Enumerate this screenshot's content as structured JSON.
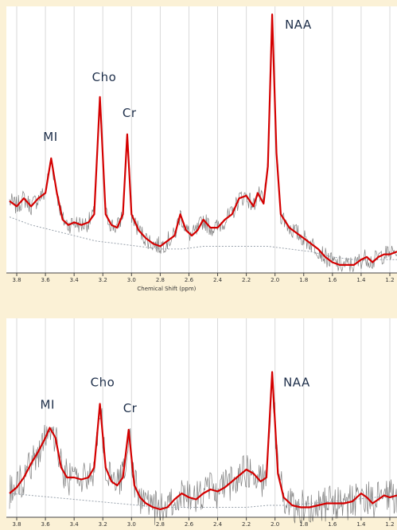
{
  "chart_data": [
    {
      "type": "line",
      "title": "",
      "xlabel": "Chemical Shift (ppm)",
      "ylabel": "",
      "x_reversed": true,
      "xlim": [
        3.85,
        1.15
      ],
      "ylim": [
        0,
        1
      ],
      "grid": true,
      "xticks": [
        3.8,
        3.6,
        3.4,
        3.2,
        3.0,
        2.8,
        2.6,
        2.4,
        2.2,
        2.0,
        1.8,
        1.6,
        1.4,
        1.2
      ],
      "tick_labels": [
        "3.8",
        "3.6",
        "3.4",
        "3.2",
        "3.0",
        "2.8",
        "2.6",
        "2.4",
        "2.2",
        "2.0",
        "1.8",
        "1.6",
        "1.4",
        "1.2"
      ],
      "series": [
        {
          "role": "fit",
          "color": "#d40000"
        },
        {
          "role": "baseline",
          "color": "#9aa3ad"
        },
        {
          "role": "raw spectrum",
          "color": "#555555"
        }
      ],
      "peaks": [
        {
          "label": "MI",
          "x": 3.56,
          "y": 0.43
        },
        {
          "label": "Cho",
          "x": 3.22,
          "y": 0.66
        },
        {
          "label": "Cr",
          "x": 3.03,
          "y": 0.52
        },
        {
          "label": "NAA",
          "x": 2.02,
          "y": 0.97
        }
      ],
      "fit": [
        [
          3.85,
          0.27
        ],
        [
          3.8,
          0.25
        ],
        [
          3.75,
          0.28
        ],
        [
          3.7,
          0.25
        ],
        [
          3.65,
          0.28
        ],
        [
          3.6,
          0.3
        ],
        [
          3.56,
          0.43
        ],
        [
          3.52,
          0.3
        ],
        [
          3.48,
          0.2
        ],
        [
          3.44,
          0.18
        ],
        [
          3.4,
          0.19
        ],
        [
          3.35,
          0.18
        ],
        [
          3.3,
          0.19
        ],
        [
          3.26,
          0.22
        ],
        [
          3.22,
          0.66
        ],
        [
          3.18,
          0.22
        ],
        [
          3.14,
          0.18
        ],
        [
          3.1,
          0.17
        ],
        [
          3.06,
          0.22
        ],
        [
          3.03,
          0.52
        ],
        [
          3.0,
          0.22
        ],
        [
          2.95,
          0.16
        ],
        [
          2.9,
          0.13
        ],
        [
          2.85,
          0.11
        ],
        [
          2.8,
          0.1
        ],
        [
          2.75,
          0.12
        ],
        [
          2.7,
          0.14
        ],
        [
          2.66,
          0.22
        ],
        [
          2.62,
          0.16
        ],
        [
          2.58,
          0.14
        ],
        [
          2.54,
          0.16
        ],
        [
          2.5,
          0.2
        ],
        [
          2.45,
          0.17
        ],
        [
          2.4,
          0.17
        ],
        [
          2.35,
          0.2
        ],
        [
          2.3,
          0.22
        ],
        [
          2.25,
          0.28
        ],
        [
          2.2,
          0.29
        ],
        [
          2.15,
          0.25
        ],
        [
          2.12,
          0.3
        ],
        [
          2.08,
          0.26
        ],
        [
          2.05,
          0.4
        ],
        [
          2.02,
          0.97
        ],
        [
          1.99,
          0.45
        ],
        [
          1.96,
          0.22
        ],
        [
          1.9,
          0.17
        ],
        [
          1.85,
          0.15
        ],
        [
          1.8,
          0.13
        ],
        [
          1.75,
          0.11
        ],
        [
          1.7,
          0.09
        ],
        [
          1.65,
          0.06
        ],
        [
          1.6,
          0.04
        ],
        [
          1.55,
          0.03
        ],
        [
          1.5,
          0.03
        ],
        [
          1.45,
          0.03
        ],
        [
          1.4,
          0.05
        ],
        [
          1.36,
          0.06
        ],
        [
          1.32,
          0.04
        ],
        [
          1.28,
          0.06
        ],
        [
          1.24,
          0.07
        ],
        [
          1.2,
          0.07
        ],
        [
          1.15,
          0.08
        ]
      ],
      "baseline": [
        [
          3.85,
          0.21
        ],
        [
          3.7,
          0.18
        ],
        [
          3.55,
          0.16
        ],
        [
          3.4,
          0.14
        ],
        [
          3.25,
          0.12
        ],
        [
          3.1,
          0.11
        ],
        [
          2.95,
          0.1
        ],
        [
          2.8,
          0.09
        ],
        [
          2.65,
          0.09
        ],
        [
          2.5,
          0.1
        ],
        [
          2.35,
          0.1
        ],
        [
          2.2,
          0.1
        ],
        [
          2.05,
          0.1
        ],
        [
          1.9,
          0.09
        ],
        [
          1.75,
          0.08
        ],
        [
          1.6,
          0.06
        ],
        [
          1.45,
          0.05
        ],
        [
          1.3,
          0.05
        ],
        [
          1.15,
          0.05
        ]
      ],
      "noise_amplitude": 0.035
    },
    {
      "type": "line",
      "title": "",
      "xlabel": "",
      "ylabel": "",
      "x_reversed": true,
      "xlim": [
        3.85,
        1.15
      ],
      "ylim": [
        0,
        1
      ],
      "grid": true,
      "xticks": [
        3.8,
        3.6,
        3.4,
        3.2,
        3.0,
        2.8,
        2.6,
        2.4,
        2.2,
        2.0,
        1.8,
        1.6,
        1.4,
        1.2
      ],
      "tick_labels": [
        "3.8",
        "3.6",
        "3.4",
        "3.2",
        "3.0",
        "2.8",
        "2.6",
        "2.4",
        "2.2",
        "2.0",
        "1.8",
        "1.6",
        "1.4",
        "1.2"
      ],
      "series": [
        {
          "role": "fit",
          "color": "#d40000"
        },
        {
          "role": "baseline",
          "color": "#9aa3ad"
        },
        {
          "role": "raw spectrum",
          "color": "#555555"
        }
      ],
      "peaks": [
        {
          "label": "MI",
          "x": 3.57,
          "y": 0.45
        },
        {
          "label": "Cho",
          "x": 3.22,
          "y": 0.57
        },
        {
          "label": "Cr",
          "x": 3.02,
          "y": 0.44
        },
        {
          "label": "NAA",
          "x": 2.02,
          "y": 0.73
        }
      ],
      "fit": [
        [
          3.85,
          0.12
        ],
        [
          3.8,
          0.15
        ],
        [
          3.75,
          0.2
        ],
        [
          3.7,
          0.27
        ],
        [
          3.65,
          0.33
        ],
        [
          3.6,
          0.4
        ],
        [
          3.57,
          0.45
        ],
        [
          3.53,
          0.4
        ],
        [
          3.49,
          0.25
        ],
        [
          3.45,
          0.2
        ],
        [
          3.4,
          0.2
        ],
        [
          3.35,
          0.19
        ],
        [
          3.3,
          0.2
        ],
        [
          3.26,
          0.25
        ],
        [
          3.22,
          0.57
        ],
        [
          3.18,
          0.25
        ],
        [
          3.14,
          0.18
        ],
        [
          3.1,
          0.16
        ],
        [
          3.06,
          0.2
        ],
        [
          3.02,
          0.44
        ],
        [
          2.98,
          0.16
        ],
        [
          2.94,
          0.1
        ],
        [
          2.9,
          0.07
        ],
        [
          2.85,
          0.05
        ],
        [
          2.8,
          0.04
        ],
        [
          2.75,
          0.05
        ],
        [
          2.7,
          0.09
        ],
        [
          2.65,
          0.12
        ],
        [
          2.6,
          0.1
        ],
        [
          2.55,
          0.09
        ],
        [
          2.5,
          0.12
        ],
        [
          2.45,
          0.14
        ],
        [
          2.4,
          0.13
        ],
        [
          2.35,
          0.15
        ],
        [
          2.3,
          0.18
        ],
        [
          2.25,
          0.21
        ],
        [
          2.2,
          0.24
        ],
        [
          2.15,
          0.22
        ],
        [
          2.1,
          0.18
        ],
        [
          2.06,
          0.2
        ],
        [
          2.02,
          0.73
        ],
        [
          1.98,
          0.22
        ],
        [
          1.94,
          0.1
        ],
        [
          1.88,
          0.06
        ],
        [
          1.82,
          0.05
        ],
        [
          1.76,
          0.05
        ],
        [
          1.7,
          0.06
        ],
        [
          1.64,
          0.07
        ],
        [
          1.58,
          0.07
        ],
        [
          1.52,
          0.07
        ],
        [
          1.46,
          0.08
        ],
        [
          1.4,
          0.12
        ],
        [
          1.36,
          0.1
        ],
        [
          1.32,
          0.07
        ],
        [
          1.28,
          0.09
        ],
        [
          1.24,
          0.11
        ],
        [
          1.2,
          0.1
        ],
        [
          1.15,
          0.11
        ]
      ],
      "baseline": [
        [
          3.85,
          0.12
        ],
        [
          3.7,
          0.11
        ],
        [
          3.55,
          0.1
        ],
        [
          3.4,
          0.09
        ],
        [
          3.25,
          0.08
        ],
        [
          3.1,
          0.07
        ],
        [
          2.95,
          0.06
        ],
        [
          2.8,
          0.05
        ],
        [
          2.65,
          0.05
        ],
        [
          2.5,
          0.05
        ],
        [
          2.35,
          0.05
        ],
        [
          2.2,
          0.05
        ],
        [
          2.05,
          0.06
        ],
        [
          1.9,
          0.06
        ],
        [
          1.75,
          0.07
        ],
        [
          1.6,
          0.08
        ],
        [
          1.45,
          0.09
        ],
        [
          1.3,
          0.1
        ],
        [
          1.15,
          0.11
        ]
      ],
      "noise_amplitude": 0.09
    }
  ]
}
